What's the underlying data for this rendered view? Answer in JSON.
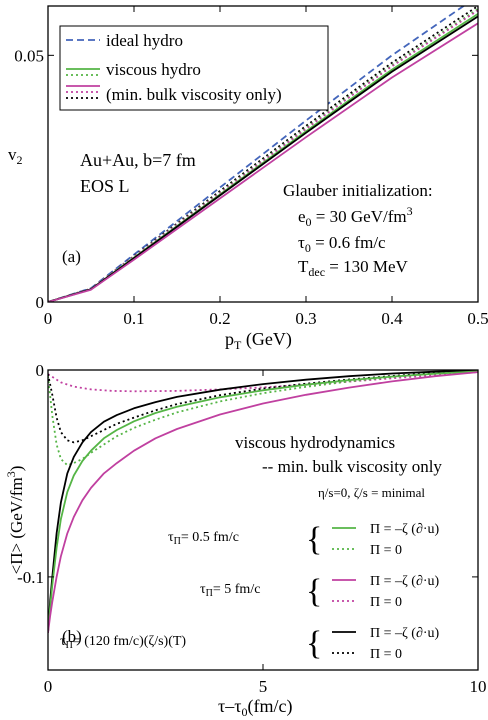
{
  "chart_data": [
    {
      "panel": "(a)",
      "type": "line",
      "xlabel": "p",
      "xlabel_sub": "T",
      "xlabel_unit": " (GeV)",
      "ylabel": "v",
      "ylabel_sub": "2",
      "xlim": [
        0,
        0.5
      ],
      "ylim": [
        0,
        0.06
      ],
      "xticks": [
        0,
        0.1,
        0.2,
        0.3,
        0.4,
        0.5
      ],
      "xtick_labels": [
        "0",
        "0.1",
        "0.2",
        "0.3",
        "0.4",
        "0.5"
      ],
      "yticks": [
        0,
        0.05
      ],
      "ytick_labels": [
        "0",
        "0.05"
      ],
      "legend": {
        "placement": "top-left",
        "entries": [
          "ideal hydro",
          "viscous hydro",
          "(min. bulk viscosity only)"
        ]
      },
      "annotations": {
        "system_line1": "Au+Au, b=7 fm",
        "system_line2": "EOS L",
        "glauber_title": "Glauber initialization:",
        "e0": {
          "sym": "e",
          "sub": "0",
          "val": " = 30 GeV/fm",
          "sup": "3"
        },
        "tau0": {
          "sym": "τ",
          "sub": "0",
          "val": " = 0.6 fm/c"
        },
        "tdec": {
          "sym": "T",
          "sub": "dec",
          "val": " = 130 MeV"
        }
      },
      "series": [
        {
          "style": "dashed",
          "color": "#4466bb",
          "x": [
            0,
            0.05,
            0.1,
            0.2,
            0.3,
            0.4,
            0.5
          ],
          "y": [
            0,
            0.0028,
            0.0096,
            0.0232,
            0.0368,
            0.05,
            0.062
          ]
        },
        {
          "style": "dotted",
          "color": "#000000",
          "x": [
            0,
            0.05,
            0.1,
            0.2,
            0.3,
            0.4,
            0.5
          ],
          "y": [
            0,
            0.0027,
            0.0093,
            0.0225,
            0.0357,
            0.0485,
            0.06
          ]
        },
        {
          "style": "dotted",
          "color": "#55b546",
          "x": [
            0,
            0.05,
            0.1,
            0.2,
            0.3,
            0.4,
            0.5
          ],
          "y": [
            0,
            0.0027,
            0.0092,
            0.0222,
            0.0353,
            0.048,
            0.0594
          ]
        },
        {
          "style": "dotted",
          "color": "#c040a0",
          "x": [
            0,
            0.05,
            0.1,
            0.2,
            0.3,
            0.4,
            0.5
          ],
          "y": [
            0,
            0.0027,
            0.0092,
            0.0221,
            0.0351,
            0.0478,
            0.0591
          ]
        },
        {
          "style": "solid",
          "color": "#55b546",
          "x": [
            0,
            0.05,
            0.1,
            0.2,
            0.3,
            0.4,
            0.5
          ],
          "y": [
            0,
            0.0026,
            0.009,
            0.0218,
            0.0346,
            0.0471,
            0.0584
          ]
        },
        {
          "style": "solid",
          "color": "#000000",
          "x": [
            0,
            0.05,
            0.1,
            0.2,
            0.3,
            0.4,
            0.5
          ],
          "y": [
            0,
            0.0026,
            0.0089,
            0.0216,
            0.0343,
            0.0467,
            0.0579
          ]
        },
        {
          "style": "solid",
          "color": "#c040a0",
          "x": [
            0,
            0.05,
            0.1,
            0.2,
            0.3,
            0.4,
            0.5
          ],
          "y": [
            0,
            0.0025,
            0.0086,
            0.021,
            0.0334,
            0.0455,
            0.0565
          ]
        }
      ]
    },
    {
      "panel": "(b)",
      "type": "line",
      "xlabel": "τ–τ",
      "xlabel_sub": "0",
      "xlabel_unit": "(fm/c)",
      "ylabel": "<Π> (GeV/fm",
      "ylabel_sup": "3",
      "ylabel_end": ")",
      "xlim": [
        0,
        10
      ],
      "ylim": [
        -0.145,
        0
      ],
      "xticks": [
        0,
        5,
        10
      ],
      "xtick_labels": [
        "0",
        "5",
        "10"
      ],
      "yticks": [
        0,
        -0.1
      ],
      "ytick_labels": [
        "0",
        "-0.1"
      ],
      "annotations": {
        "title1": "viscous hydrodynamics",
        "title2": "-- min. bulk viscosity only",
        "params": "η/s=0,    ζ/s = minimal",
        "group1": {
          "tau": "τ",
          "sub": "Π",
          "val": "= 0.5 fm/c"
        },
        "group2": {
          "tau": "τ",
          "sub": "Π",
          "val": "= 5 fm/c"
        },
        "group3": {
          "tau": "τ",
          "sub": "Π",
          "val": "= (120 fm/c)(ζ/s)(T)"
        },
        "eq_nonzero": "Π = –ζ (∂·u)",
        "eq_zero": "Π = 0",
        "brace": "{"
      },
      "series": [
        {
          "style": "dotted",
          "color": "#c040a0",
          "x": [
            0,
            0.3,
            0.6,
            1,
            1.5,
            2,
            3,
            4,
            5,
            6,
            7,
            8,
            9,
            10
          ],
          "y": [
            -0.002,
            -0.006,
            -0.008,
            -0.0094,
            -0.0101,
            -0.0103,
            -0.0101,
            -0.0094,
            -0.0084,
            -0.0071,
            -0.0056,
            -0.004,
            -0.0024,
            -0.001
          ]
        },
        {
          "style": "dotted",
          "color": "#55b546",
          "x": [
            0,
            0.1,
            0.2,
            0.3,
            0.45,
            0.6,
            0.8,
            1,
            1.3,
            1.6,
            2,
            2.5,
            3,
            4,
            5,
            6,
            7,
            8,
            9,
            10
          ],
          "y": [
            -0.003,
            -0.022,
            -0.036,
            -0.043,
            -0.046,
            -0.045,
            -0.043,
            -0.04,
            -0.036,
            -0.032,
            -0.028,
            -0.024,
            -0.0205,
            -0.0152,
            -0.0112,
            -0.0081,
            -0.0055,
            -0.0034,
            -0.0017,
            -0.0005
          ]
        },
        {
          "style": "dotted",
          "color": "#000000",
          "x": [
            0,
            0.1,
            0.2,
            0.3,
            0.45,
            0.6,
            0.8,
            1,
            1.3,
            1.6,
            2,
            2.5,
            3,
            4,
            5,
            6,
            7,
            8,
            9,
            10
          ],
          "y": [
            -0.002,
            -0.012,
            -0.023,
            -0.03,
            -0.034,
            -0.035,
            -0.034,
            -0.032,
            -0.029,
            -0.026,
            -0.023,
            -0.0195,
            -0.0165,
            -0.0122,
            -0.009,
            -0.0066,
            -0.0046,
            -0.0029,
            -0.0014,
            -0.0004
          ]
        },
        {
          "style": "solid",
          "color": "#000000",
          "x": [
            0,
            0.05,
            0.1,
            0.2,
            0.3,
            0.45,
            0.6,
            0.8,
            1,
            1.3,
            1.6,
            2,
            2.5,
            3,
            4,
            5,
            6,
            7,
            8,
            9,
            10
          ],
          "y": [
            -0.127,
            -0.112,
            -0.1,
            -0.079,
            -0.064,
            -0.05,
            -0.042,
            -0.035,
            -0.03,
            -0.025,
            -0.0218,
            -0.0185,
            -0.0155,
            -0.013,
            -0.0095,
            -0.0068,
            -0.0047,
            -0.003,
            -0.0017,
            -0.0008,
            -0.0002
          ]
        },
        {
          "style": "solid",
          "color": "#55b546",
          "x": [
            0,
            0.05,
            0.1,
            0.2,
            0.3,
            0.45,
            0.6,
            0.8,
            1,
            1.3,
            1.6,
            2,
            2.5,
            3,
            4,
            5,
            6,
            7,
            8,
            9,
            10
          ],
          "y": [
            -0.127,
            -0.115,
            -0.104,
            -0.086,
            -0.072,
            -0.059,
            -0.051,
            -0.044,
            -0.039,
            -0.033,
            -0.029,
            -0.0248,
            -0.0208,
            -0.0178,
            -0.0132,
            -0.0098,
            -0.0071,
            -0.0049,
            -0.0032,
            -0.0018,
            -0.0007
          ]
        },
        {
          "style": "solid",
          "color": "#c040a0",
          "x": [
            0,
            0.05,
            0.1,
            0.2,
            0.3,
            0.45,
            0.6,
            0.8,
            1,
            1.3,
            1.6,
            2,
            2.5,
            3,
            4,
            5,
            6,
            7,
            8,
            9,
            10
          ],
          "y": [
            -0.127,
            -0.119,
            -0.112,
            -0.1,
            -0.09,
            -0.079,
            -0.071,
            -0.063,
            -0.057,
            -0.05,
            -0.045,
            -0.039,
            -0.033,
            -0.0285,
            -0.0215,
            -0.0162,
            -0.012,
            -0.0085,
            -0.0055,
            -0.003,
            -0.001
          ]
        }
      ]
    }
  ]
}
